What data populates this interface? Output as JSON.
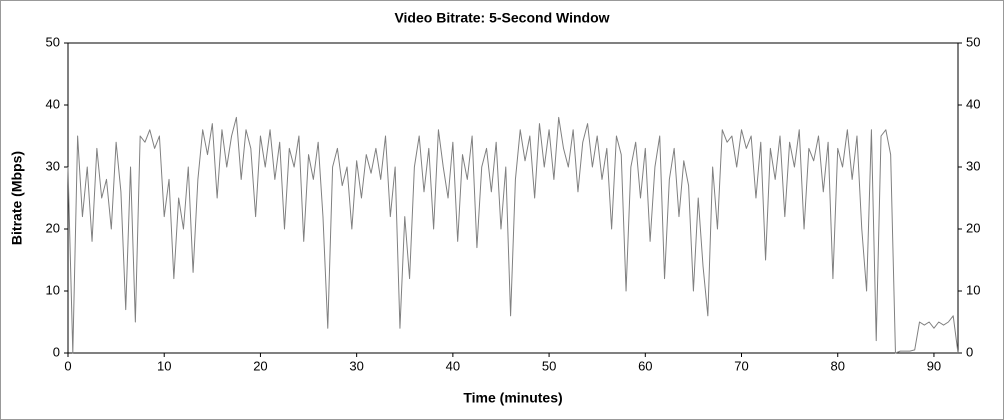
{
  "chart_data": {
    "type": "line",
    "title": "Video Bitrate: 5-Second Window",
    "x_label": "Time (minutes)",
    "y_label": "Bitrate (Mbps)",
    "x": [
      0,
      0.5,
      1,
      1.5,
      2,
      2.5,
      3,
      3.5,
      4,
      4.5,
      5,
      5.5,
      6,
      6.5,
      7,
      7.5,
      8,
      8.5,
      9,
      9.5,
      10,
      10.5,
      11,
      11.5,
      12,
      12.5,
      13,
      13.5,
      14,
      14.5,
      15,
      15.5,
      16,
      16.5,
      17,
      17.5,
      18,
      18.5,
      19,
      19.5,
      20,
      20.5,
      21,
      21.5,
      22,
      22.5,
      23,
      23.5,
      24,
      24.5,
      25,
      25.5,
      26,
      26.5,
      27,
      27.5,
      28,
      28.5,
      29,
      29.5,
      30,
      30.5,
      31,
      31.5,
      32,
      32.5,
      33,
      33.5,
      34,
      34.5,
      35,
      35.5,
      36,
      36.5,
      37,
      37.5,
      38,
      38.5,
      39,
      39.5,
      40,
      40.5,
      41,
      41.5,
      42,
      42.5,
      43,
      43.5,
      44,
      44.5,
      45,
      45.5,
      46,
      46.5,
      47,
      47.5,
      48,
      48.5,
      49,
      49.5,
      50,
      50.5,
      51,
      51.5,
      52,
      52.5,
      53,
      53.5,
      54,
      54.5,
      55,
      55.5,
      56,
      56.5,
      57,
      57.5,
      58,
      58.5,
      59,
      59.5,
      60,
      60.5,
      61,
      61.5,
      62,
      62.5,
      63,
      63.5,
      64,
      64.5,
      65,
      65.5,
      66,
      66.5,
      67,
      67.5,
      68,
      68.5,
      69,
      69.5,
      70,
      70.5,
      71,
      71.5,
      72,
      72.5,
      73,
      73.5,
      74,
      74.5,
      75,
      75.5,
      76,
      76.5,
      77,
      77.5,
      78,
      78.5,
      79,
      79.5,
      80,
      80.5,
      81,
      81.5,
      82,
      82.5,
      83,
      83.5,
      84,
      84.5,
      85,
      85.5,
      86,
      86.5,
      87,
      87.5,
      88,
      88.5,
      89,
      89.5,
      90,
      90.5,
      91,
      91.5,
      92,
      92.5
    ],
    "series": [
      {
        "name": "Video Bitrate",
        "color": "#808080",
        "values": [
          30,
          0,
          35,
          22,
          30,
          18,
          33,
          25,
          28,
          20,
          34,
          26,
          7,
          30,
          5,
          35,
          34,
          36,
          33,
          35,
          22,
          28,
          12,
          25,
          20,
          30,
          13,
          28,
          36,
          32,
          37,
          25,
          36,
          30,
          35,
          38,
          28,
          36,
          33,
          22,
          35,
          30,
          36,
          28,
          34,
          20,
          33,
          30,
          35,
          18,
          32,
          28,
          34,
          22,
          4,
          30,
          33,
          27,
          30,
          20,
          31,
          25,
          32,
          29,
          33,
          28,
          35,
          22,
          30,
          4,
          22,
          12,
          30,
          35,
          26,
          33,
          20,
          36,
          30,
          25,
          34,
          18,
          32,
          28,
          35,
          17,
          30,
          33,
          26,
          34,
          20,
          30,
          6,
          28,
          36,
          31,
          35,
          25,
          37,
          30,
          36,
          28,
          38,
          33,
          30,
          36,
          26,
          34,
          37,
          30,
          35,
          28,
          33,
          20,
          35,
          32,
          10,
          30,
          34,
          25,
          33,
          18,
          30,
          35,
          12,
          28,
          33,
          22,
          31,
          27,
          10,
          25,
          14,
          6,
          30,
          20,
          36,
          34,
          35,
          30,
          36,
          33,
          35,
          25,
          34,
          15,
          33,
          28,
          35,
          22,
          34,
          30,
          36,
          20,
          33,
          31,
          35,
          26,
          34,
          12,
          33,
          30,
          36,
          28,
          35,
          20,
          10,
          36,
          2,
          35,
          36,
          32,
          0,
          0.3,
          0.3,
          0.3,
          0.5,
          5,
          4.5,
          5,
          4,
          5,
          4.5,
          5,
          6,
          0
        ]
      }
    ],
    "xlim": [
      0,
      92.5
    ],
    "xticks": [
      0,
      10,
      20,
      30,
      40,
      50,
      60,
      70,
      80,
      90
    ],
    "ylim": [
      0,
      50
    ],
    "yticks": [
      0,
      10,
      20,
      30,
      40,
      50
    ],
    "y2lim": [
      0,
      50
    ],
    "y2ticks": [
      0,
      10,
      20,
      30,
      40,
      50
    ],
    "grid": false
  }
}
